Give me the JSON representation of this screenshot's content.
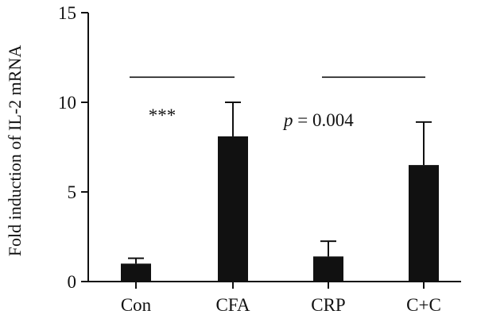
{
  "chart_data": {
    "type": "bar",
    "categories": [
      "Con",
      "CFA",
      "CRP",
      "C+C"
    ],
    "values": [
      1.0,
      8.1,
      1.4,
      6.5
    ],
    "errors": [
      0.3,
      1.9,
      0.85,
      2.4
    ],
    "ylabel": "Fold induction of IL-2 mRNA",
    "xlabel": "",
    "ylim": [
      0,
      15
    ],
    "yticks": [
      0,
      5,
      10,
      15
    ],
    "grid": false,
    "bar_color": "#111111",
    "comparisons": [
      {
        "from": "Con",
        "to": "CFA",
        "label": "***",
        "y": 11.4
      },
      {
        "from": "CRP",
        "to": "C+C",
        "label_italic": "p",
        "label_rest": " = 0.004",
        "y": 11.4
      }
    ]
  }
}
